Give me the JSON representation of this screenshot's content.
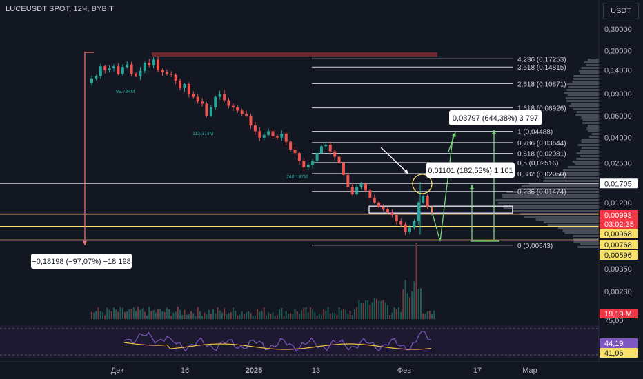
{
  "header": {
    "symbol_title": "LUCEUSDT SPOT, 12Ч, BYBIT",
    "currency": "USDT"
  },
  "colors": {
    "up": "#26a69a",
    "down": "#ef5350",
    "fib_line": "#d1d4dc",
    "yellow": "#f7e16b",
    "arrow_green": "#7bd37b",
    "arrow_red": "#e57373",
    "rsi_line": "#7e57c2",
    "rsi_ma": "#f5c242"
  },
  "chart_data": {
    "type": "candlestick",
    "title": "LUCEUSDT SPOT, 12Ч, BYBIT",
    "y_scale": "log",
    "price_axis_labels": [
      "0,30000",
      "0,20000",
      "0,14000",
      "0,09000",
      "0,06000",
      "0,04000",
      "0,02500",
      "0,01200",
      "0,00350",
      "0,00230"
    ],
    "price_axis_values": [
      0.3,
      0.2,
      0.14,
      0.09,
      0.06,
      0.04,
      0.025,
      0.012,
      0.0035,
      0.0023
    ],
    "x_axis_labels": [
      "Дек",
      "16",
      "2025",
      "13",
      "Фев",
      "17",
      "Мар"
    ],
    "approx_closes": [
      0.12,
      0.125,
      0.15,
      0.14,
      0.145,
      0.15,
      0.13,
      0.148,
      0.155,
      0.13,
      0.125,
      0.138,
      0.16,
      0.152,
      0.17,
      0.14,
      0.135,
      0.13,
      0.128,
      0.115,
      0.1,
      0.108,
      0.09,
      0.085,
      0.078,
      0.075,
      0.06,
      0.07,
      0.085,
      0.09,
      0.08,
      0.072,
      0.07,
      0.066,
      0.062,
      0.06,
      0.05,
      0.045,
      0.04,
      0.042,
      0.045,
      0.041,
      0.04,
      0.043,
      0.037,
      0.032,
      0.03,
      0.026,
      0.023,
      0.024,
      0.026,
      0.03,
      0.034,
      0.035,
      0.031,
      0.028,
      0.025,
      0.02,
      0.016,
      0.014,
      0.016,
      0.017,
      0.015,
      0.013,
      0.012,
      0.011,
      0.0105,
      0.01,
      0.0095,
      0.0085,
      0.008,
      0.007,
      0.0075,
      0.0085,
      0.012,
      0.0135,
      0.011,
      0.0099
    ],
    "fib_levels": [
      {
        "label": "4,236 (0,17253)",
        "value": 0.17253
      },
      {
        "label": "3,618 (0,14815)",
        "value": 0.14815
      },
      {
        "label": "2,618 (0,10871)",
        "value": 0.10871
      },
      {
        "label": "1,618 (0,06926)",
        "value": 0.06926
      },
      {
        "label": "1 (0,04488)",
        "value": 0.04488
      },
      {
        "label": "0,786 (0,03644)",
        "value": 0.03644
      },
      {
        "label": "0,618 (0,02981)",
        "value": 0.02981
      },
      {
        "label": "0,5 (0,02516)",
        "value": 0.02516
      },
      {
        "label": "0,382 (0,02050)",
        "value": 0.0205
      },
      {
        "label": "0,236 (0,01474)",
        "value": 0.01474
      },
      {
        "label": "0 (0,00543)",
        "value": 0.00543
      }
    ],
    "price_badges": [
      {
        "label": "0,01705",
        "value": 0.01705,
        "style": "line"
      },
      {
        "label": "0,00993",
        "value": 0.00993,
        "style": "current"
      },
      {
        "label": "03:02:35",
        "style": "timer"
      },
      {
        "label": "0,00968",
        "value": 0.00968,
        "style": "yellow"
      },
      {
        "label": "0,00768",
        "value": 0.00768,
        "style": "yellow"
      },
      {
        "label": "0,00596",
        "value": 0.00596,
        "style": "yellow"
      },
      {
        "label": "19,19 M",
        "style": "volume"
      }
    ],
    "volume_profile_labels": [
      "99.784M",
      "113.374M",
      "240.137M"
    ],
    "annotations": [
      {
        "text": "−0,18198 (−97,07%) −18 198"
      },
      {
        "text": "0,03797 (644,38%) 3 797"
      },
      {
        "text": "0,01101 (182,53%) 1 101"
      }
    ],
    "rsi": {
      "axis_label": "75,00",
      "value_label": "44,19",
      "ma_label": "41,06",
      "value": 44.19,
      "ma": 41.06
    },
    "grid": false
  }
}
